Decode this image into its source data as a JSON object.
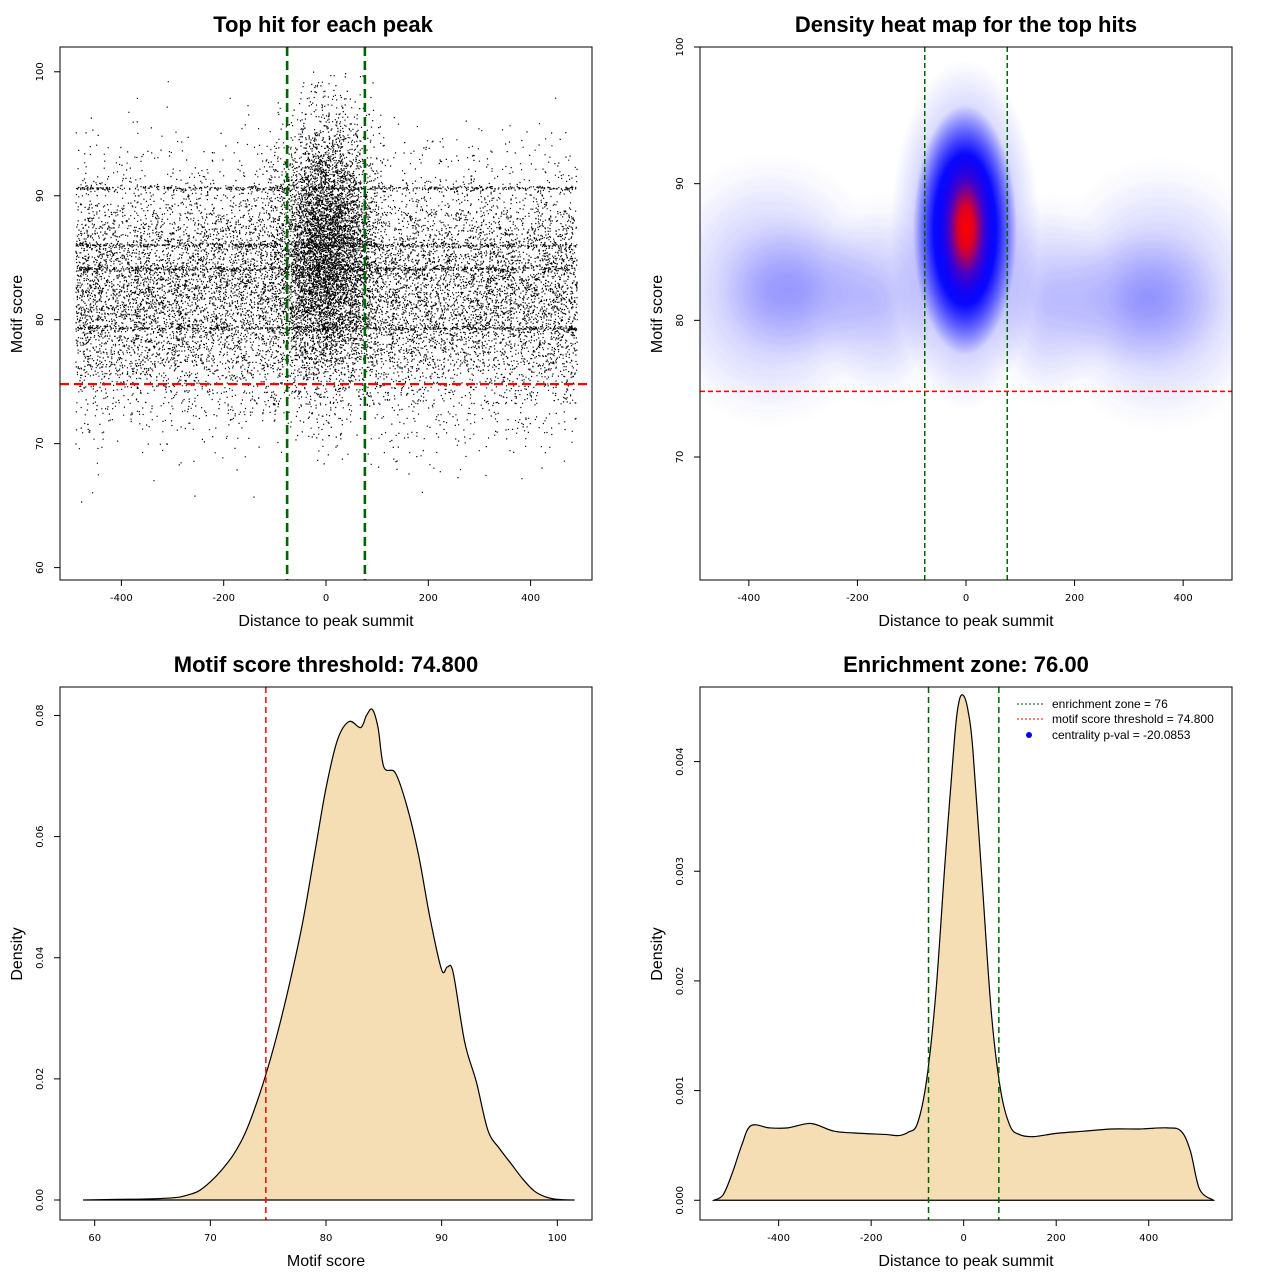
{
  "chart_data": [
    {
      "id": "scatter",
      "type": "scatter",
      "title": "Top hit for each peak",
      "xlabel": "Distance to peak summit",
      "ylabel": "Motif score",
      "xlim": [
        -520,
        520
      ],
      "ylim": [
        59,
        102
      ],
      "xticks": [
        -400,
        -200,
        0,
        200,
        400
      ],
      "yticks": [
        60,
        70,
        80,
        90,
        100
      ],
      "threshold": 74.8,
      "enrichment_zone": 76,
      "threshold_color": "#ff0000",
      "zone_color": "#006400",
      "point_color": "#000000",
      "distribution": {
        "x_range": [
          -490,
          490
        ],
        "background_score_mean": 82,
        "background_score_sd": 4.8,
        "central_score_mean": 86,
        "central_score_sd": 5,
        "central_x_sd": 45,
        "horizontal_bands": [
          90.6,
          86,
          84.1,
          79.3
        ]
      }
    },
    {
      "id": "heatmap",
      "type": "heatmap",
      "title": "Density heat map for the top hits",
      "xlabel": "Distance to peak summit",
      "ylabel": "Motif score",
      "xlim": [
        -490,
        490
      ],
      "ylim": [
        61,
        100
      ],
      "xticks": [
        -400,
        -200,
        0,
        200,
        400
      ],
      "yticks": [
        70,
        80,
        90,
        100
      ],
      "threshold": 74.8,
      "enrichment_zone": 76,
      "threshold_color": "#ff0000",
      "zone_color": "#006400",
      "peak_center": [
        5,
        86.5
      ],
      "colors": [
        "#ffffff",
        "#0000ff",
        "#ff0000"
      ]
    },
    {
      "id": "score_density",
      "type": "area",
      "title": "Motif score threshold: 74.800",
      "xlabel": "Motif score",
      "ylabel": "Density",
      "xlim": [
        57,
        103
      ],
      "ylim": [
        -0.0033,
        0.0847
      ],
      "xticks": [
        60,
        70,
        80,
        90,
        100
      ],
      "yticks": [
        0,
        0.02,
        0.04,
        0.06,
        0.08
      ],
      "ytick_labels": [
        "0.00",
        "0.02",
        "0.04",
        "0.06",
        "0.08"
      ],
      "threshold": 74.8,
      "threshold_color": "#ff0000",
      "fill_color": "#f5deb3",
      "x": [
        59,
        62,
        65,
        67,
        68,
        69,
        70,
        71,
        72,
        73,
        74,
        75,
        76,
        77,
        78,
        79,
        80,
        81,
        82,
        83,
        83.5,
        84,
        84.5,
        85,
        86,
        87,
        88,
        89,
        90,
        90.5,
        91,
        92,
        93,
        94,
        95,
        96,
        97,
        98,
        99,
        100,
        101.5
      ],
      "y": [
        0,
        0.0001,
        0.0002,
        0.0004,
        0.0008,
        0.0015,
        0.003,
        0.005,
        0.0075,
        0.011,
        0.016,
        0.022,
        0.029,
        0.037,
        0.046,
        0.057,
        0.068,
        0.076,
        0.079,
        0.078,
        0.08,
        0.081,
        0.078,
        0.0715,
        0.0705,
        0.065,
        0.057,
        0.0465,
        0.038,
        0.0385,
        0.0375,
        0.026,
        0.0195,
        0.0115,
        0.0085,
        0.006,
        0.0035,
        0.0015,
        0.0005,
        0.0001,
        0
      ]
    },
    {
      "id": "distance_density",
      "type": "area",
      "title": "Enrichment zone: 76.00",
      "xlabel": "Distance to peak summit",
      "ylabel": "Density",
      "xlim": [
        -570,
        580
      ],
      "ylim": [
        -0.00018,
        0.00468
      ],
      "xticks": [
        -400,
        -200,
        0,
        200,
        400
      ],
      "yticks": [
        0,
        0.001,
        0.002,
        0.003,
        0.004
      ],
      "ytick_labels": [
        "0.000",
        "0.001",
        "0.002",
        "0.003",
        "0.004"
      ],
      "enrichment_zone": 76,
      "zone_color": "#006400",
      "fill_color": "#f5deb3",
      "x": [
        -540,
        -520,
        -500,
        -480,
        -460,
        -420,
        -380,
        -330,
        -280,
        -220,
        -170,
        -140,
        -120,
        -100,
        -80,
        -60,
        -40,
        -20,
        -10,
        0,
        10,
        20,
        40,
        60,
        80,
        100,
        120,
        150,
        200,
        260,
        320,
        380,
        440,
        470,
        490,
        510,
        540
      ],
      "y": [
        0,
        5e-05,
        0.00025,
        0.0005,
        0.00068,
        0.00066,
        0.00066,
        0.0007,
        0.00063,
        0.00061,
        0.0006,
        0.00059,
        0.00062,
        0.0007,
        0.0011,
        0.0019,
        0.0031,
        0.0042,
        0.00455,
        0.0046,
        0.00445,
        0.0041,
        0.0029,
        0.0017,
        0.001,
        0.00068,
        0.0006,
        0.00058,
        0.00061,
        0.00063,
        0.00065,
        0.00065,
        0.00066,
        0.00063,
        0.00045,
        0.0001,
        0
      ],
      "legend": [
        {
          "label": "enrichment zone = 76",
          "color": "#006400",
          "style": "dotted-line"
        },
        {
          "label": "motif score threshold = 74.800",
          "color": "#ff0000",
          "style": "dotted-line"
        },
        {
          "label": "centrality p-val = -20.0853",
          "color": "#0000ff",
          "style": "dot"
        }
      ]
    }
  ]
}
